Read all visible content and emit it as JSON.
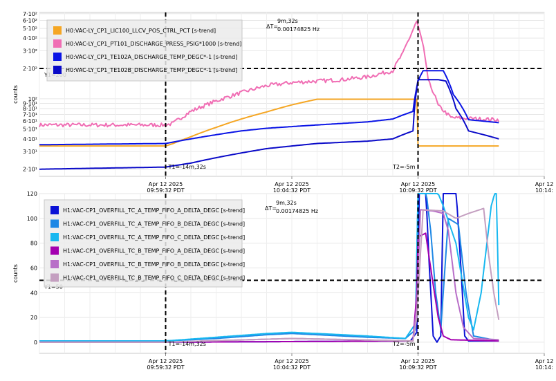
{
  "chart_data": [
    {
      "type": "line",
      "ylabel": "counts",
      "yscale": "log",
      "ylim": [
        17,
        720
      ],
      "y_ticks": [
        {
          "v": 20,
          "label": "2·10¹"
        },
        {
          "v": 30,
          "label": "3·10¹"
        },
        {
          "v": 40,
          "label": "4·10¹"
        },
        {
          "v": 50,
          "label": "5·10¹"
        },
        {
          "v": 60,
          "label": "6·10¹"
        },
        {
          "v": 70,
          "label": "7·10¹"
        },
        {
          "v": 80,
          "label": "8·10¹"
        },
        {
          "v": 90,
          "label": "9·10¹"
        },
        {
          "v": 100,
          "label": "10²"
        },
        {
          "v": 200,
          "label": "2·10²"
        },
        {
          "v": 300,
          "label": "3·10²"
        },
        {
          "v": 400,
          "label": "4·10²"
        },
        {
          "v": 500,
          "label": "5·10²"
        },
        {
          "v": 600,
          "label": "6·10²"
        },
        {
          "v": 700,
          "label": "7·10²"
        }
      ],
      "x_ticks": [
        {
          "t": 0,
          "line1": "Apr 12 2025",
          "line2": "09:59:32 PDT"
        },
        {
          "t": 5,
          "line1": "Apr 12 2025",
          "line2": "10:04:32 PDT"
        },
        {
          "t": 10,
          "line1": "Apr 12 2025",
          "line2": "10:09:32 PDT"
        },
        {
          "t": 15,
          "line1": "Apr 12",
          "line2": "10:14:"
        }
      ],
      "xlim": [
        -5,
        15
      ],
      "cursor_t1": {
        "t": 0,
        "label": "T1=-14m,32s"
      },
      "cursor_t2": {
        "t": 10,
        "label": "T2=-5m"
      },
      "cursor_y": {
        "v": 200,
        "label": "Y1=200"
      },
      "delta": {
        "prefix": "ΔT=",
        "time": "9m,32s",
        "freq": "0.00174825 Hz"
      },
      "series": [
        {
          "name": "H0:VAC-LY_CP1_LIC100_LLCV_POS_CTRL_PCT [s-trend]",
          "color": "#f5a623",
          "points": [
            [
              -5,
              34
            ],
            [
              0,
              34
            ],
            [
              0.3,
              36
            ],
            [
              1,
              42
            ],
            [
              2,
              52
            ],
            [
              3,
              63
            ],
            [
              4,
              74
            ],
            [
              5,
              87
            ],
            [
              6,
              99
            ],
            [
              7,
              99
            ],
            [
              8,
              99
            ],
            [
              9,
              99
            ],
            [
              9.95,
              99
            ],
            [
              10,
              34
            ],
            [
              13.2,
              34
            ]
          ]
        },
        {
          "name": "H0:VAC-LY_CP1_PT101_DISCHARGE_PRESS_PSIG*1000 [s-trend]",
          "color": "#f06eb4",
          "noise": 0.045,
          "points": [
            [
              -5,
              55
            ],
            [
              0,
              55
            ],
            [
              0.3,
              57
            ],
            [
              1,
              75
            ],
            [
              2,
              95
            ],
            [
              3,
              115
            ],
            [
              4,
              135
            ],
            [
              5,
              145
            ],
            [
              6,
              150
            ],
            [
              7,
              155
            ],
            [
              8,
              165
            ],
            [
              9,
              190
            ],
            [
              9.4,
              280
            ],
            [
              9.7,
              420
            ],
            [
              9.95,
              580
            ],
            [
              10.1,
              420
            ],
            [
              10.4,
              150
            ],
            [
              10.8,
              85
            ],
            [
              11.3,
              65
            ],
            [
              12.5,
              63
            ],
            [
              13.2,
              62
            ]
          ]
        },
        {
          "name": "H0:VAC-LY_CP1_TE102A_DISCHARGE_TEMP_DEGC*-1 [s-trend]",
          "color": "#0a14e6",
          "points": [
            [
              -5,
              35
            ],
            [
              0,
              36
            ],
            [
              1,
              40
            ],
            [
              2,
              44
            ],
            [
              3,
              48
            ],
            [
              4,
              51
            ],
            [
              5,
              53
            ],
            [
              6,
              55
            ],
            [
              7,
              57
            ],
            [
              8,
              59
            ],
            [
              9,
              63
            ],
            [
              9.8,
              75
            ],
            [
              10,
              150
            ],
            [
              10.2,
              190
            ],
            [
              11,
              190
            ],
            [
              11.4,
              110
            ],
            [
              12,
              62
            ],
            [
              13.2,
              58
            ]
          ]
        },
        {
          "name": "H0:VAC-LY_CP1_TE102B_DISCHARGE_TEMP_DEGC*-1 [s-trend]",
          "color": "#0a0ac8",
          "points": [
            [
              -5,
              20
            ],
            [
              0,
              21
            ],
            [
              1,
              23
            ],
            [
              2,
              26
            ],
            [
              3,
              29
            ],
            [
              4,
              32
            ],
            [
              5,
              34
            ],
            [
              6,
              36
            ],
            [
              7,
              37
            ],
            [
              8,
              38
            ],
            [
              9,
              40
            ],
            [
              9.8,
              48
            ],
            [
              10,
              155
            ],
            [
              10.3,
              155
            ],
            [
              10.8,
              155
            ],
            [
              11.1,
              150
            ],
            [
              11.5,
              80
            ],
            [
              12,
              48
            ],
            [
              13.2,
              40
            ]
          ]
        }
      ]
    },
    {
      "type": "line",
      "ylabel": "counts",
      "ylim": [
        -9,
        120
      ],
      "y_ticks": [
        {
          "v": 0,
          "label": "0"
        },
        {
          "v": 20,
          "label": "20"
        },
        {
          "v": 40,
          "label": "40"
        },
        {
          "v": 60,
          "label": "60"
        },
        {
          "v": 80,
          "label": "80"
        },
        {
          "v": 100,
          "label": "100"
        },
        {
          "v": 120,
          "label": "120"
        }
      ],
      "x_ticks": [
        {
          "t": 0,
          "line1": "Apr 12 2025",
          "line2": "09:59:32 PDT"
        },
        {
          "t": 5,
          "line1": "Apr 12 2025",
          "line2": "10:04:32 PDT"
        },
        {
          "t": 10,
          "line1": "Apr 12 2025",
          "line2": "10:09:32 PDT"
        },
        {
          "t": 15,
          "line1": "Apr 12",
          "line2": "10:14:"
        }
      ],
      "xlim": [
        -5,
        15
      ],
      "cursor_t1": {
        "t": 0,
        "label": "T1=-14m,32s"
      },
      "cursor_t2": {
        "t": 10,
        "label": "T2=-5m"
      },
      "cursor_y": {
        "v": 50,
        "label": "Y1=50"
      },
      "delta": {
        "prefix": "ΔT=",
        "time": "9m,32s",
        "freq": "0.00174825 Hz"
      },
      "series": [
        {
          "name": "H1:VAC-CP1_OVERFILL_TC_A_TEMP_FIFO_A_DELTA_DEGC [s-trend]",
          "color": "#0b12d6",
          "points": [
            [
              -5,
              0
            ],
            [
              0,
              0
            ],
            [
              9.7,
              1
            ],
            [
              9.95,
              8
            ],
            [
              10.05,
              125
            ],
            [
              10.3,
              125
            ],
            [
              10.45,
              60
            ],
            [
              10.6,
              5
            ],
            [
              10.75,
              0
            ],
            [
              10.9,
              5
            ],
            [
              11,
              125
            ],
            [
              11.5,
              125
            ],
            [
              11.7,
              60
            ],
            [
              11.85,
              5
            ],
            [
              12,
              1
            ],
            [
              13.2,
              1
            ]
          ]
        },
        {
          "name": "H1:VAC-CP1_OVERFILL_TC_A_TEMP_FIFO_B_DELTA_DEGC [s-trend]",
          "color": "#1e88e5",
          "points": [
            [
              -5,
              1
            ],
            [
              0,
              1
            ],
            [
              2,
              3
            ],
            [
              4,
              6
            ],
            [
              5,
              7
            ],
            [
              6,
              6
            ],
            [
              8,
              4
            ],
            [
              9.5,
              3
            ],
            [
              9.9,
              10
            ],
            [
              10,
              125
            ],
            [
              10.3,
              125
            ],
            [
              10.5,
              90
            ],
            [
              10.7,
              40
            ],
            [
              10.9,
              10
            ],
            [
              11.2,
              100
            ],
            [
              11.6,
              95
            ],
            [
              11.9,
              40
            ],
            [
              12.2,
              5
            ],
            [
              13.2,
              1
            ]
          ]
        },
        {
          "name": "H1:VAC-CP1_OVERFILL_TC_A_TEMP_FIFO_C_DELTA_DEGC [s-trend]",
          "color": "#18b8f0",
          "points": [
            [
              -5,
              1
            ],
            [
              0,
              1
            ],
            [
              2,
              4
            ],
            [
              4,
              7
            ],
            [
              5,
              8
            ],
            [
              6,
              7
            ],
            [
              8,
              5
            ],
            [
              9.5,
              3
            ],
            [
              9.9,
              15
            ],
            [
              10,
              125
            ],
            [
              10.7,
              125
            ],
            [
              11,
              110
            ],
            [
              11.5,
              80
            ],
            [
              12,
              20
            ],
            [
              12.2,
              10
            ],
            [
              12.5,
              40
            ],
            [
              12.9,
              110
            ],
            [
              13.1,
              125
            ],
            [
              13.2,
              30
            ]
          ]
        },
        {
          "name": "H1:VAC-CP1_OVERFILL_TC_B_TEMP_FIFO_A_DELTA_DEGC [s-trend]",
          "color": "#a400b0",
          "points": [
            [
              -5,
              0
            ],
            [
              0,
              0
            ],
            [
              9.8,
              1
            ],
            [
              9.95,
              40
            ],
            [
              10,
              85
            ],
            [
              10.3,
              88
            ],
            [
              10.5,
              60
            ],
            [
              10.8,
              20
            ],
            [
              11,
              5
            ],
            [
              11.3,
              2
            ],
            [
              13.2,
              1
            ]
          ]
        },
        {
          "name": "H1:VAC-CP1_OVERFILL_TC_B_TEMP_FIFO_B_DELTA_DEGC [s-trend]",
          "color": "#b86ec8",
          "points": [
            [
              -5,
              0
            ],
            [
              0,
              0
            ],
            [
              5,
              3
            ],
            [
              9.8,
              1
            ],
            [
              9.95,
              30
            ],
            [
              10.1,
              107
            ],
            [
              10.6,
              106
            ],
            [
              11,
              104
            ],
            [
              11.2,
              90
            ],
            [
              11.5,
              40
            ],
            [
              11.8,
              12
            ],
            [
              12.2,
              3
            ],
            [
              13.2,
              2
            ]
          ]
        },
        {
          "name": "H1:VAC-CP1_OVERFILL_TC_B_TEMP_FIFO_C_DELTA_DEGC [s-trend]",
          "color": "#c49fc0",
          "points": [
            [
              -5,
              0
            ],
            [
              0,
              0
            ],
            [
              5,
              3
            ],
            [
              9.8,
              1
            ],
            [
              9.95,
              20
            ],
            [
              10.2,
              107
            ],
            [
              11,
              106
            ],
            [
              11.5,
              100
            ],
            [
              12,
              104
            ],
            [
              12.6,
              108
            ],
            [
              12.8,
              70
            ],
            [
              13.0,
              40
            ],
            [
              13.2,
              18
            ]
          ]
        }
      ]
    }
  ]
}
